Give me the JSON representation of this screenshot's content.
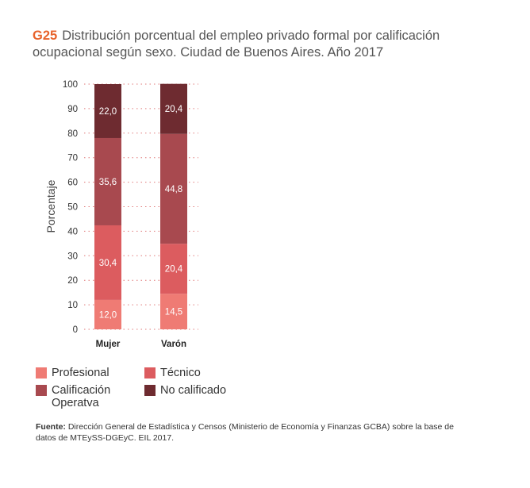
{
  "header": {
    "code": "G25",
    "title": "Distribución porcentual del empleo privado formal por calificación ocupacional según sexo. Ciudad de Buenos Aires. Año 2017"
  },
  "chart_data": {
    "type": "bar",
    "stacked": true,
    "ylabel": "Porcentaje",
    "ylim": [
      0,
      100
    ],
    "yticks": [
      0,
      10,
      20,
      30,
      40,
      50,
      60,
      70,
      80,
      90,
      100
    ],
    "grid": "horizontal-dotted",
    "categories": [
      "Mujer",
      "Varón"
    ],
    "series": [
      {
        "name": "Profesional",
        "color": "#ef7b74",
        "values": [
          12.0,
          14.5
        ],
        "labels": [
          "12,0",
          "14,5"
        ]
      },
      {
        "name": "Técnico",
        "color": "#dc5c5f",
        "values": [
          30.4,
          20.4
        ],
        "labels": [
          "30,4",
          "20,4"
        ]
      },
      {
        "name": "Calificación Operatva",
        "color": "#a8494f",
        "values": [
          35.6,
          44.8
        ],
        "labels": [
          "35,6",
          "44,8"
        ]
      },
      {
        "name": "No calificado",
        "color": "#6e2b30",
        "values": [
          22.0,
          20.4
        ],
        "labels": [
          "22,0",
          "20,4"
        ]
      }
    ],
    "legend_position": "bottom"
  },
  "legend": {
    "items": [
      {
        "label": "Profesional",
        "color": "#ef7b74"
      },
      {
        "label": "Técnico",
        "color": "#dc5c5f"
      },
      {
        "label": "Calificación Operatva",
        "color": "#a8494f"
      },
      {
        "label": "No calificado",
        "color": "#6e2b30"
      }
    ]
  },
  "source": {
    "label": "Fuente:",
    "text": "Dirección General de Estadística y Censos (Ministerio de Economía y Finanzas GCBA) sobre la base de datos de MTEySS-DGEyC. EIL 2017."
  }
}
